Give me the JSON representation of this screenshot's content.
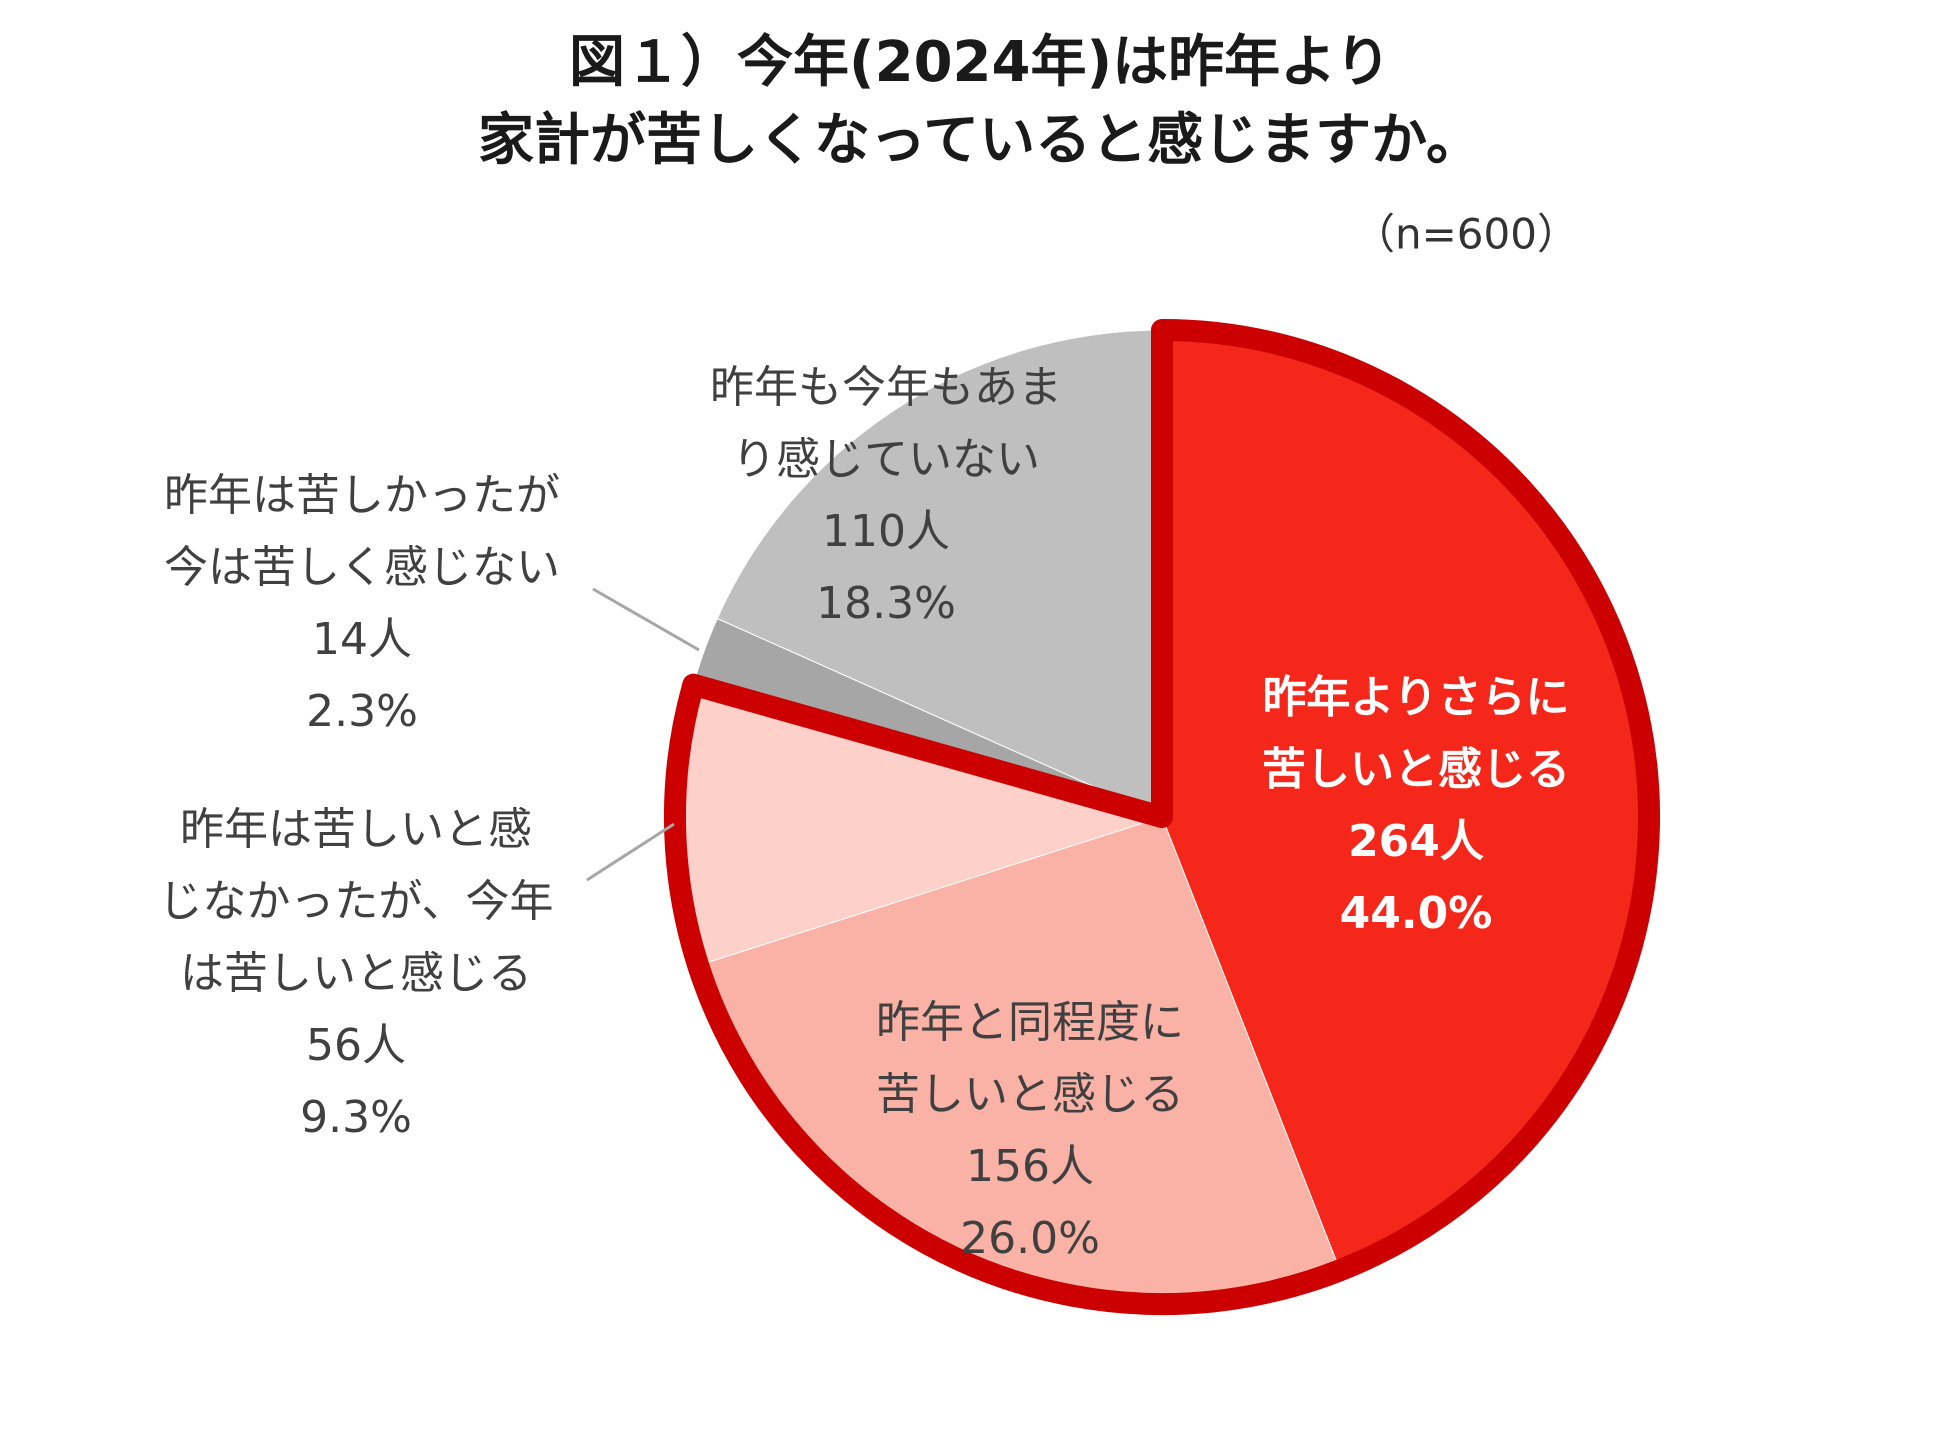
{
  "chart_data": {
    "type": "pie",
    "title": [
      "図１）今年(2024年)は昨年より",
      "家計が苦しくなっていると感じますか。"
    ],
    "subtitle": "（n=600）",
    "categories": [
      [
        "昨年よりさらに",
        "苦しいと感じる"
      ],
      [
        "昨年と同程度に",
        "苦しいと感じる"
      ],
      [
        "昨年は苦しいと感",
        "じなかったが、今年",
        "は苦しいと感じる"
      ],
      [
        "昨年は苦しかったが",
        "今は苦しく感じない"
      ],
      [
        "昨年も今年もあま",
        "り感じていない"
      ]
    ],
    "count_labels": [
      "264人",
      "156人",
      "56人",
      "14人",
      "110人"
    ],
    "values": [
      44.0,
      26.0,
      9.3,
      2.3,
      18.3
    ],
    "value_labels": [
      "44.0%",
      "26.0%",
      "9.3%",
      "2.3%",
      "18.3%"
    ],
    "colors": [
      "#f5271a",
      "#f9b2a5",
      "#fdd0c9",
      "#a6a6a6",
      "#bfbfbf"
    ]
  }
}
